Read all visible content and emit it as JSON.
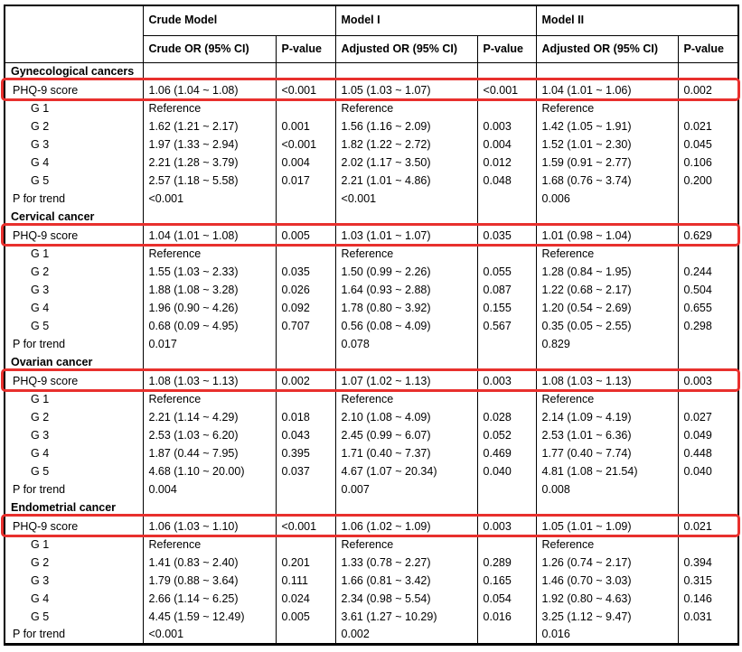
{
  "colors": {
    "highlight_red": "#e8302d",
    "table_border": "#000000",
    "background": "#ffffff"
  },
  "table": {
    "header": {
      "models": [
        "Crude Model",
        "Model I",
        "Model II"
      ],
      "columns": [
        "Crude OR (95% CI)",
        "P-value",
        "Adjusted OR (95% CI)",
        "P-value",
        "Adjusted OR (95% CI)",
        "P-value"
      ]
    },
    "sections": [
      {
        "title": "Gynecological cancers",
        "rows": [
          {
            "label": "PHQ-9 score",
            "indent": false,
            "highlight": true,
            "cells": [
              "1.06 (1.04 ~ 1.08)",
              "<0.001",
              "1.05 (1.03 ~ 1.07)",
              "<0.001",
              "1.04 (1.01 ~ 1.06)",
              "0.002"
            ]
          },
          {
            "label": "G 1",
            "indent": true,
            "highlight": false,
            "cells": [
              "Reference",
              "",
              "Reference",
              "",
              "Reference",
              ""
            ]
          },
          {
            "label": "G 2",
            "indent": true,
            "highlight": false,
            "cells": [
              "1.62 (1.21 ~ 2.17)",
              "0.001",
              "1.56 (1.16 ~ 2.09)",
              "0.003",
              "1.42 (1.05 ~ 1.91)",
              "0.021"
            ]
          },
          {
            "label": "G 3",
            "indent": true,
            "highlight": false,
            "cells": [
              "1.97 (1.33 ~ 2.94)",
              "<0.001",
              "1.82 (1.22 ~ 2.72)",
              "0.004",
              "1.52 (1.01 ~ 2.30)",
              "0.045"
            ]
          },
          {
            "label": "G 4",
            "indent": true,
            "highlight": false,
            "cells": [
              "2.21 (1.28 ~ 3.79)",
              "0.004",
              "2.02 (1.17 ~ 3.50)",
              "0.012",
              "1.59 (0.91 ~ 2.77)",
              "0.106"
            ]
          },
          {
            "label": "G 5",
            "indent": true,
            "highlight": false,
            "cells": [
              "2.57 (1.18 ~ 5.58)",
              "0.017",
              "2.21 (1.01 ~ 4.86)",
              "0.048",
              "1.68 (0.76 ~ 3.74)",
              "0.200"
            ]
          },
          {
            "label": "P for trend",
            "indent": false,
            "highlight": false,
            "cells": [
              "<0.001",
              "",
              "<0.001",
              "",
              "0.006",
              ""
            ]
          }
        ]
      },
      {
        "title": "Cervical cancer",
        "rows": [
          {
            "label": "PHQ-9 score",
            "indent": false,
            "highlight": true,
            "cells": [
              "1.04 (1.01 ~ 1.08)",
              "0.005",
              "1.03 (1.01 ~ 1.07)",
              "0.035",
              "1.01 (0.98 ~ 1.04)",
              "0.629"
            ]
          },
          {
            "label": "G 1",
            "indent": true,
            "highlight": false,
            "cells": [
              "Reference",
              "",
              "Reference",
              "",
              "Reference",
              ""
            ]
          },
          {
            "label": "G 2",
            "indent": true,
            "highlight": false,
            "cells": [
              "1.55 (1.03 ~ 2.33)",
              "0.035",
              "1.50 (0.99 ~ 2.26)",
              "0.055",
              "1.28 (0.84 ~ 1.95)",
              "0.244"
            ]
          },
          {
            "label": "G 3",
            "indent": true,
            "highlight": false,
            "cells": [
              "1.88 (1.08 ~ 3.28)",
              "0.026",
              "1.64 (0.93 ~ 2.88)",
              "0.087",
              "1.22 (0.68 ~ 2.17)",
              "0.504"
            ]
          },
          {
            "label": "G 4",
            "indent": true,
            "highlight": false,
            "cells": [
              "1.96 (0.90 ~ 4.26)",
              "0.092",
              "1.78 (0.80 ~ 3.92)",
              "0.155",
              "1.20 (0.54 ~ 2.69)",
              "0.655"
            ]
          },
          {
            "label": "G 5",
            "indent": true,
            "highlight": false,
            "cells": [
              "0.68 (0.09 ~ 4.95)",
              "0.707",
              "0.56 (0.08 ~ 4.09)",
              "0.567",
              "0.35 (0.05 ~ 2.55)",
              "0.298"
            ]
          },
          {
            "label": "P for trend",
            "indent": false,
            "highlight": false,
            "cells": [
              "0.017",
              "",
              "0.078",
              "",
              "0.829",
              ""
            ]
          }
        ]
      },
      {
        "title": "Ovarian cancer",
        "rows": [
          {
            "label": "PHQ-9 score",
            "indent": false,
            "highlight": true,
            "cells": [
              "1.08 (1.03 ~ 1.13)",
              "0.002",
              "1.07 (1.02 ~ 1.13)",
              "0.003",
              "1.08 (1.03 ~ 1.13)",
              "0.003"
            ]
          },
          {
            "label": "G 1",
            "indent": true,
            "highlight": false,
            "cells": [
              "Reference",
              "",
              "Reference",
              "",
              "Reference",
              ""
            ]
          },
          {
            "label": "G 2",
            "indent": true,
            "highlight": false,
            "cells": [
              "2.21 (1.14 ~ 4.29)",
              "0.018",
              "2.10 (1.08 ~ 4.09)",
              "0.028",
              "2.14 (1.09 ~ 4.19)",
              "0.027"
            ]
          },
          {
            "label": "G 3",
            "indent": true,
            "highlight": false,
            "cells": [
              "2.53 (1.03 ~ 6.20)",
              "0.043",
              "2.45 (0.99 ~ 6.07)",
              "0.052",
              "2.53 (1.01 ~ 6.36)",
              "0.049"
            ]
          },
          {
            "label": "G 4",
            "indent": true,
            "highlight": false,
            "cells": [
              "1.87 (0.44 ~ 7.95)",
              "0.395",
              "1.71 (0.40 ~ 7.37)",
              "0.469",
              "1.77 (0.40 ~ 7.74)",
              "0.448"
            ]
          },
          {
            "label": "G 5",
            "indent": true,
            "highlight": false,
            "cells": [
              "4.68 (1.10 ~ 20.00)",
              "0.037",
              "4.67 (1.07 ~ 20.34)",
              "0.040",
              "4.81 (1.08 ~ 21.54)",
              "0.040"
            ]
          },
          {
            "label": "P for trend",
            "indent": false,
            "highlight": false,
            "cells": [
              "0.004",
              "",
              "0.007",
              "",
              "0.008",
              ""
            ]
          }
        ]
      },
      {
        "title": "Endometrial cancer",
        "rows": [
          {
            "label": "PHQ-9 score",
            "indent": false,
            "highlight": true,
            "cells": [
              "1.06 (1.03 ~ 1.10)",
              "<0.001",
              "1.06 (1.02 ~ 1.09)",
              "0.003",
              "1.05 (1.01 ~ 1.09)",
              "0.021"
            ]
          },
          {
            "label": "G 1",
            "indent": true,
            "highlight": false,
            "cells": [
              "Reference",
              "",
              "Reference",
              "",
              "Reference",
              ""
            ]
          },
          {
            "label": "G 2",
            "indent": true,
            "highlight": false,
            "cells": [
              "1.41 (0.83 ~ 2.40)",
              "0.201",
              "1.33 (0.78 ~ 2.27)",
              "0.289",
              "1.26 (0.74 ~ 2.17)",
              "0.394"
            ]
          },
          {
            "label": "G 3",
            "indent": true,
            "highlight": false,
            "cells": [
              "1.79 (0.88 ~ 3.64)",
              "0.111",
              "1.66 (0.81 ~ 3.42)",
              "0.165",
              "1.46 (0.70 ~ 3.03)",
              "0.315"
            ]
          },
          {
            "label": "G 4",
            "indent": true,
            "highlight": false,
            "cells": [
              "2.66 (1.14 ~ 6.25)",
              "0.024",
              "2.34 (0.98 ~ 5.54)",
              "0.054",
              "1.92 (0.80 ~ 4.63)",
              "0.146"
            ]
          },
          {
            "label": "G 5",
            "indent": true,
            "highlight": false,
            "cells": [
              "4.45 (1.59 ~ 12.49)",
              "0.005",
              "3.61 (1.27 ~ 10.29)",
              "0.016",
              "3.25 (1.12 ~ 9.47)",
              "0.031"
            ]
          },
          {
            "label": "P for trend",
            "indent": false,
            "highlight": false,
            "cells": [
              "<0.001",
              "",
              "0.002",
              "",
              "0.016",
              ""
            ]
          }
        ]
      }
    ]
  }
}
